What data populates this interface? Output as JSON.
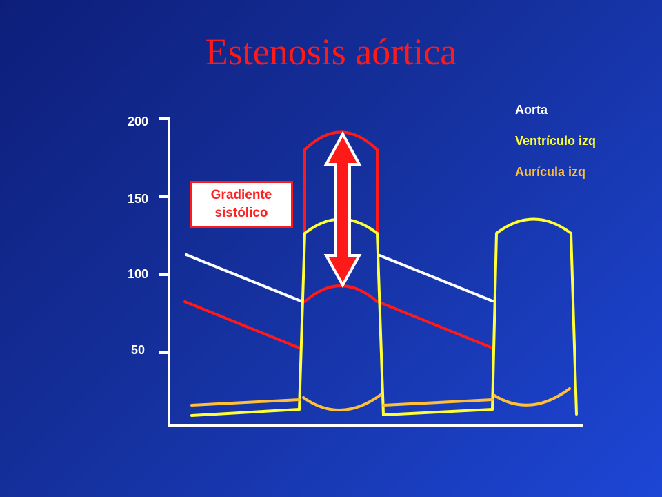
{
  "title": "Estenosis aórtica",
  "y_ticks": [
    "200",
    "150",
    "100",
    "50"
  ],
  "legend": [
    {
      "label": "Aorta",
      "color": "#ffffff"
    },
    {
      "label": "Ventrículo izq",
      "color": "#ffff33"
    },
    {
      "label": "Aurícula izq",
      "color": "#ffc038"
    }
  ],
  "annotation": {
    "line1": "Gradiente",
    "line2": "sistólico"
  },
  "colors": {
    "aorta": "#ffffff",
    "ventricle": "#ffff33",
    "atrium": "#ffc038",
    "gradient": "#ff1a1a",
    "axis": "#ffffff"
  }
}
